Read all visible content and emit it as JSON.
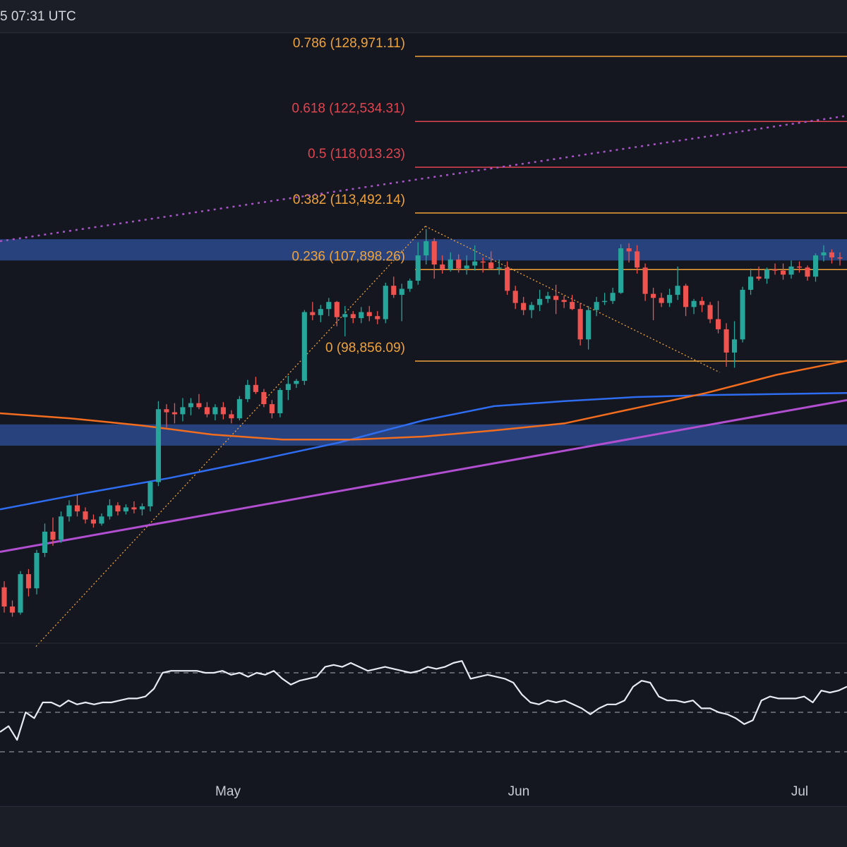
{
  "header": {
    "timestamp": "5 07:31 UTC"
  },
  "colors": {
    "background": "#141620",
    "bull": "#26a69a",
    "bear": "#ef5350",
    "fib_orange": "#f0a33a",
    "fib_red": "#e0454f",
    "zone_blue": "#2a4a8e",
    "ma_blue": "#2f6df0",
    "ma_orange": "#f36d1f",
    "trend_purple": "#b24fd1",
    "trend_dotted": "#a855c7",
    "rsi_line": "#e8ebf2",
    "grid_dash": "#8a8d96"
  },
  "chart_data": {
    "type": "candlestick",
    "x_axis_labels": [
      "May",
      "Jun",
      "Jul"
    ],
    "fib_levels": [
      {
        "label": "0.786 (128,971.11)",
        "ratio": 0.786,
        "price": 128971.11,
        "color": "#f0a33a"
      },
      {
        "label": "0.618 (122,534.31)",
        "ratio": 0.618,
        "price": 122534.31,
        "color": "#e0454f"
      },
      {
        "label": "0.5 (118,013.23)",
        "ratio": 0.5,
        "price": 118013.23,
        "color": "#e0454f"
      },
      {
        "label": "0.382 (113,492.14)",
        "ratio": 0.382,
        "price": 113492.14,
        "color": "#f0a33a"
      },
      {
        "label": "0.236 (107,898.26)",
        "ratio": 0.236,
        "price": 107898.26,
        "color": "#f0a33a"
      },
      {
        "label": "0 (98,856.09)",
        "ratio": 0,
        "price": 98856.09,
        "color": "#f0a33a"
      }
    ],
    "price_scale": {
      "p_at_0": 98856.09,
      "p_at_0_382": 113492.14
    },
    "zones": [
      {
        "name": "resistance-zone",
        "price_low": 108800,
        "price_high": 110900
      },
      {
        "name": "support-zone",
        "price_low": 90500,
        "price_high": 92600
      }
    ],
    "candles": [
      [
        76500,
        77100,
        74000,
        74600
      ],
      [
        74600,
        75200,
        73600,
        74000
      ],
      [
        74000,
        78100,
        73800,
        77800
      ],
      [
        77800,
        78300,
        75600,
        76400
      ],
      [
        76400,
        80200,
        75800,
        79900
      ],
      [
        79900,
        82800,
        79500,
        82000
      ],
      [
        82000,
        83400,
        80600,
        81200
      ],
      [
        81200,
        84000,
        80900,
        83500
      ],
      [
        83500,
        85100,
        83000,
        84600
      ],
      [
        84600,
        85600,
        83500,
        84000
      ],
      [
        84000,
        84400,
        82800,
        83200
      ],
      [
        83200,
        83700,
        82400,
        82800
      ],
      [
        82800,
        83800,
        82600,
        83500
      ],
      [
        83500,
        85200,
        83200,
        84600
      ],
      [
        84600,
        84900,
        83600,
        84000
      ],
      [
        84000,
        84700,
        83700,
        84400
      ],
      [
        84400,
        85000,
        83800,
        84200
      ],
      [
        84200,
        84800,
        83600,
        84500
      ],
      [
        84500,
        87000,
        84000,
        86900
      ],
      [
        86900,
        94900,
        86500,
        94100
      ],
      [
        94100,
        94600,
        92300,
        93800
      ],
      [
        93800,
        94700,
        92700,
        93600
      ],
      [
        93600,
        95200,
        92900,
        94300
      ],
      [
        94300,
        95200,
        93500,
        94700
      ],
      [
        94700,
        95600,
        94100,
        94300
      ],
      [
        94300,
        94800,
        93300,
        93600
      ],
      [
        93600,
        94600,
        93000,
        94300
      ],
      [
        94300,
        94800,
        93100,
        93600
      ],
      [
        93600,
        94000,
        92700,
        93200
      ],
      [
        93200,
        95400,
        93000,
        95100
      ],
      [
        95100,
        97000,
        94800,
        96500
      ],
      [
        96500,
        97300,
        95600,
        95800
      ],
      [
        95800,
        96100,
        94300,
        94600
      ],
      [
        94600,
        95000,
        93200,
        93700
      ],
      [
        93700,
        96200,
        93300,
        96000
      ],
      [
        96000,
        97400,
        95000,
        96600
      ],
      [
        96600,
        97100,
        96200,
        96900
      ],
      [
        96900,
        103900,
        96500,
        103700
      ],
      [
        103700,
        104700,
        102900,
        103400
      ],
      [
        103400,
        104400,
        102700,
        104000
      ],
      [
        104000,
        105100,
        103300,
        104700
      ],
      [
        104700,
        104800,
        102300,
        103200
      ],
      [
        103200,
        104300,
        101300,
        103500
      ],
      [
        103500,
        103800,
        102600,
        103100
      ],
      [
        103100,
        104200,
        102600,
        103700
      ],
      [
        103700,
        104300,
        102800,
        103300
      ],
      [
        103300,
        103800,
        102500,
        103000
      ],
      [
        103000,
        106600,
        102600,
        106300
      ],
      [
        106300,
        107200,
        105100,
        105400
      ],
      [
        105400,
        106500,
        102800,
        106000
      ],
      [
        106000,
        107000,
        105700,
        106800
      ],
      [
        106800,
        110600,
        106400,
        109300
      ],
      [
        109300,
        111900,
        108400,
        110700
      ],
      [
        110700,
        111000,
        107000,
        108400
      ],
      [
        108400,
        109300,
        107500,
        107900
      ],
      [
        107900,
        109600,
        107700,
        108900
      ],
      [
        108900,
        109400,
        107600,
        108000
      ],
      [
        108000,
        109300,
        107400,
        108300
      ],
      [
        108300,
        110300,
        107800,
        108700
      ],
      [
        108700,
        109100,
        107600,
        108600
      ],
      [
        108600,
        109700,
        107900,
        108000
      ],
      [
        108000,
        108900,
        107400,
        108100
      ],
      [
        108100,
        108700,
        105400,
        105800
      ],
      [
        105800,
        106300,
        104000,
        104600
      ],
      [
        104600,
        105200,
        103400,
        103900
      ],
      [
        103900,
        104700,
        103100,
        104400
      ],
      [
        104400,
        105900,
        103800,
        105000
      ],
      [
        105000,
        105700,
        104600,
        105300
      ],
      [
        105300,
        106400,
        103500,
        104900
      ],
      [
        104900,
        105300,
        104100,
        104700
      ],
      [
        104700,
        105400,
        103900,
        104000
      ],
      [
        104000,
        104600,
        100400,
        101000
      ],
      [
        101000,
        104300,
        100000,
        103900
      ],
      [
        103900,
        105200,
        103300,
        104700
      ],
      [
        104700,
        105600,
        104400,
        104800
      ],
      [
        104800,
        106100,
        104500,
        105600
      ],
      [
        105600,
        110400,
        105500,
        110000
      ],
      [
        110000,
        110500,
        108600,
        109700
      ],
      [
        109700,
        110300,
        107500,
        108100
      ],
      [
        108100,
        108500,
        104800,
        105500
      ],
      [
        105500,
        106100,
        102900,
        105100
      ],
      [
        105100,
        105600,
        104200,
        104600
      ],
      [
        104600,
        106000,
        104200,
        105400
      ],
      [
        105400,
        108200,
        104900,
        106300
      ],
      [
        106300,
        106500,
        103300,
        104200
      ],
      [
        104200,
        105000,
        103500,
        104800
      ],
      [
        104800,
        105200,
        103700,
        104400
      ],
      [
        104400,
        104700,
        102600,
        103000
      ],
      [
        103000,
        104800,
        101600,
        102000
      ],
      [
        102000,
        102600,
        98300,
        99700
      ],
      [
        99700,
        102800,
        98200,
        101000
      ],
      [
        101000,
        106200,
        100700,
        105900
      ],
      [
        105900,
        108000,
        105400,
        107200
      ],
      [
        107200,
        108200,
        106800,
        107000
      ],
      [
        107000,
        108100,
        106500,
        107900
      ],
      [
        107900,
        108500,
        107400,
        107800
      ],
      [
        107800,
        108500,
        106900,
        107400
      ],
      [
        107400,
        108800,
        107000,
        108200
      ],
      [
        108200,
        108700,
        107600,
        108100
      ],
      [
        108100,
        108300,
        106800,
        107200
      ],
      [
        107200,
        109500,
        106700,
        109300
      ],
      [
        109300,
        110300,
        108700,
        109600
      ],
      [
        109600,
        109900,
        108500,
        109100
      ],
      [
        109100,
        109600,
        108300,
        109000
      ]
    ],
    "ma_blue": [
      [
        0,
        84200
      ],
      [
        120,
        85800
      ],
      [
        240,
        87300
      ],
      [
        360,
        89000
      ],
      [
        480,
        90800
      ],
      [
        600,
        93000
      ],
      [
        700,
        94400
      ],
      [
        800,
        94900
      ],
      [
        900,
        95300
      ],
      [
        1000,
        95500
      ],
      [
        1100,
        95600
      ],
      [
        1200,
        95700
      ]
    ],
    "ma_orange": [
      [
        0,
        93700
      ],
      [
        100,
        93200
      ],
      [
        200,
        92500
      ],
      [
        300,
        91600
      ],
      [
        400,
        91100
      ],
      [
        500,
        91100
      ],
      [
        600,
        91400
      ],
      [
        700,
        92000
      ],
      [
        800,
        92700
      ],
      [
        900,
        94200
      ],
      [
        1000,
        95700
      ],
      [
        1100,
        97500
      ],
      [
        1200,
        98900
      ]
    ],
    "trend_purple": [
      [
        0,
        80000
      ],
      [
        1200,
        95000
      ]
    ],
    "trend_dotted": [
      [
        0,
        110700
      ],
      [
        1200,
        123100
      ]
    ],
    "rsi": {
      "values": [
        40,
        43,
        36,
        50,
        47,
        55,
        55,
        53,
        56,
        54,
        55,
        54,
        55,
        55,
        56,
        57,
        57,
        58,
        62,
        70,
        71,
        71,
        71,
        71,
        70,
        70,
        71,
        69,
        70,
        68,
        70,
        69,
        71,
        67,
        64,
        66,
        67,
        68,
        73,
        74,
        73,
        75,
        73,
        71,
        72,
        73,
        72,
        71,
        70,
        71,
        73,
        72,
        73,
        75,
        76,
        67,
        68,
        69,
        68,
        67,
        65,
        59,
        55,
        54,
        56,
        55,
        56,
        54,
        52,
        49,
        52,
        54,
        54,
        56,
        63,
        66,
        65,
        58,
        56,
        56,
        55,
        56,
        52,
        52,
        50,
        49,
        47,
        44,
        46,
        56,
        58,
        57,
        57,
        57,
        58,
        55,
        61,
        60,
        61,
        63
      ],
      "levels": [
        70,
        50,
        30
      ]
    }
  }
}
